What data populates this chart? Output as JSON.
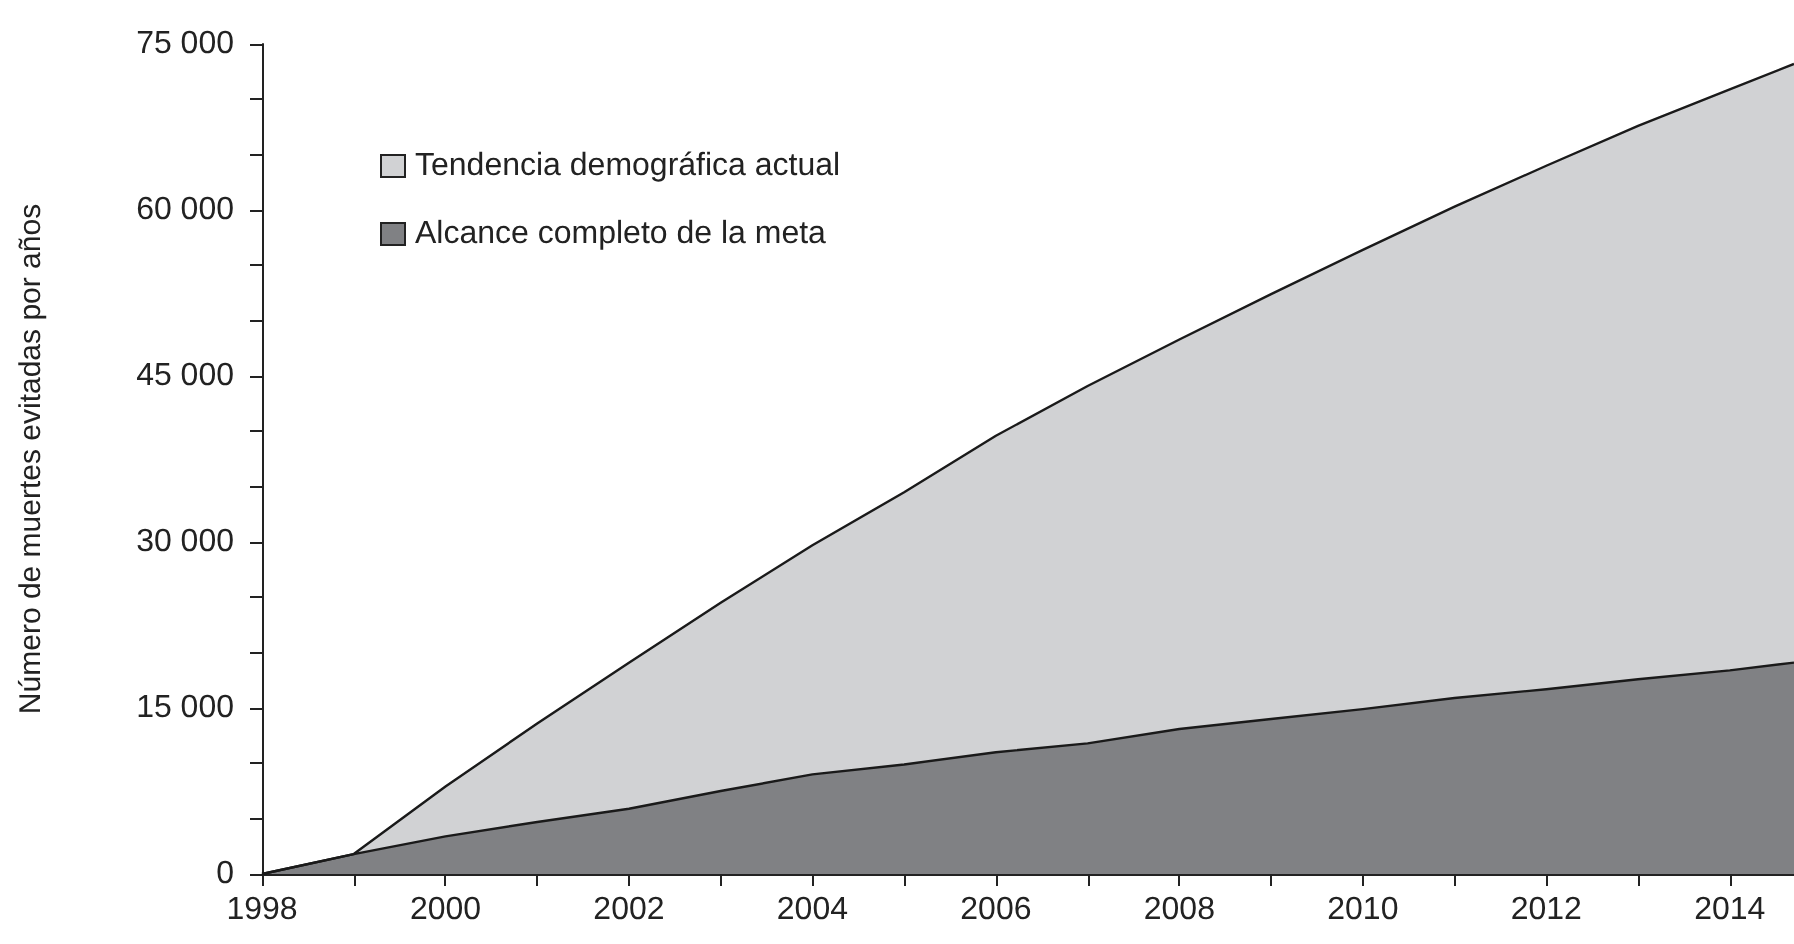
{
  "chart_data": {
    "type": "area",
    "ylabel": "Número de muertes evitadas por años",
    "x": [
      1998,
      1999,
      2000,
      2001,
      2002,
      2003,
      2004,
      2005,
      2006,
      2007,
      2008,
      2009,
      2010,
      2011,
      2012,
      2013,
      2014,
      2014.7
    ],
    "series": [
      {
        "name": "Tendencia demográfica actual",
        "color": "#d1d2d4",
        "values": [
          0,
          1800,
          7900,
          13600,
          19100,
          24500,
          29700,
          34500,
          39600,
          44100,
          48300,
          52400,
          56400,
          60300,
          64000,
          67600,
          70900,
          73200
        ]
      },
      {
        "name": "Alcance completo de la meta",
        "color": "#808184",
        "values": [
          0,
          1800,
          3400,
          4700,
          5900,
          7500,
          9000,
          9900,
          11000,
          11800,
          13100,
          14000,
          14900,
          15900,
          16700,
          17600,
          18400,
          19100
        ]
      }
    ],
    "xlim": [
      1998,
      2014.7
    ],
    "xticks": [
      1998,
      {
        "value": 1999,
        "label": null
      },
      2000,
      {
        "value": 2001,
        "label": null
      },
      2002,
      {
        "value": 2003,
        "label": null
      },
      2004,
      {
        "value": 2005,
        "label": null
      },
      2006,
      {
        "value": 2007,
        "label": null
      },
      2008,
      {
        "value": 2009,
        "label": null
      },
      2010,
      {
        "value": 2011,
        "label": null
      },
      2012,
      {
        "value": 2013,
        "label": null
      },
      2014
    ],
    "ylim": [
      0,
      75000
    ],
    "yticks": [
      0,
      {
        "value": 5000,
        "label": null
      },
      {
        "value": 10000,
        "label": null
      },
      {
        "value": 15000,
        "label": "15 000"
      },
      {
        "value": 20000,
        "label": null
      },
      {
        "value": 25000,
        "label": null
      },
      {
        "value": 30000,
        "label": "30 000"
      },
      {
        "value": 35000,
        "label": null
      },
      {
        "value": 40000,
        "label": null
      },
      {
        "value": 45000,
        "label": "45 000"
      },
      {
        "value": 50000,
        "label": null
      },
      {
        "value": 55000,
        "label": null
      },
      {
        "value": 60000,
        "label": "60 000"
      },
      {
        "value": 65000,
        "label": null
      },
      {
        "value": 70000,
        "label": null
      },
      {
        "value": 75000,
        "label": "75 000"
      }
    ],
    "grid": false,
    "legend": "top left",
    "marker": "none",
    "line_style": "solid"
  }
}
